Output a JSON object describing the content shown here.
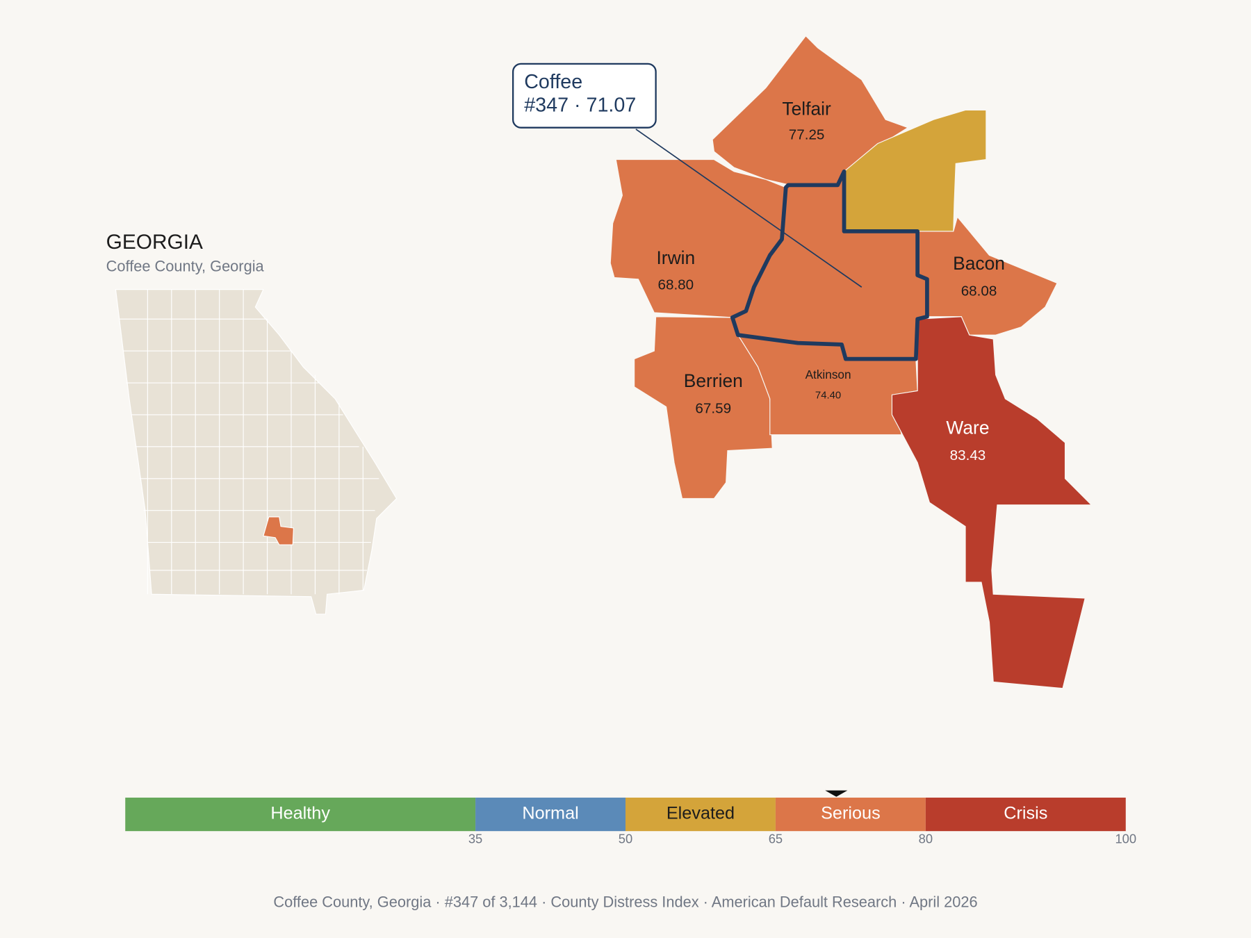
{
  "header": {
    "title": "GEORGIA",
    "subtitle": "Coffee County, Georgia"
  },
  "callout": {
    "lines": [
      "Coffee",
      "#347 · 71.07"
    ]
  },
  "counties": [
    {
      "name": "Telfair",
      "value": "77.25"
    },
    {
      "name": "Irwin",
      "value": "68.80"
    },
    {
      "name": "Bacon",
      "value": "68.08"
    },
    {
      "name": "Berrien",
      "value": "67.59"
    },
    {
      "name": "Atkinson",
      "value": "74.40"
    },
    {
      "name": "Ware",
      "value": "83.43"
    }
  ],
  "scale": {
    "range": [
      0,
      100
    ],
    "ticks": [
      35,
      50,
      65,
      80,
      100
    ],
    "marker": 71.07,
    "bands": [
      {
        "label": "Healthy",
        "color": "#66a85a"
      },
      {
        "label": "Normal",
        "color": "#5b8ab8"
      },
      {
        "label": "Elevated",
        "color": "#d4a43a"
      },
      {
        "label": "Serious",
        "color": "#dc7649"
      },
      {
        "label": "Crisis",
        "color": "#b93d2c"
      }
    ]
  },
  "footer": "Coffee County, Georgia  ·  #347 of 3,144  ·  County Distress Index  ·  American Default Research  ·  April 2026"
}
